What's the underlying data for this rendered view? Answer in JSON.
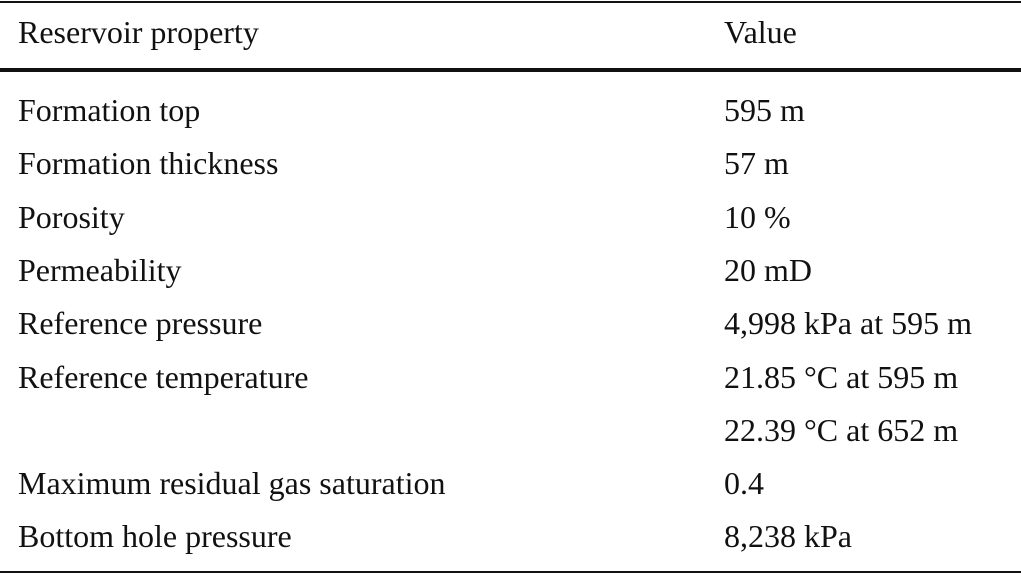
{
  "table": {
    "header": [
      "Reservoir property",
      "Value"
    ],
    "rows": [
      {
        "property": "Formation top",
        "values": [
          "595 m"
        ]
      },
      {
        "property": "Formation thickness",
        "values": [
          "57 m"
        ]
      },
      {
        "property": "Porosity",
        "values": [
          "10 %"
        ]
      },
      {
        "property": "Permeability",
        "values": [
          "20 mD"
        ]
      },
      {
        "property": "Reference pressure",
        "values": [
          "4,998 kPa at 595 m"
        ]
      },
      {
        "property": "Reference temperature",
        "values": [
          "21.85 °C at 595 m",
          "22.39 °C at 652 m"
        ]
      },
      {
        "property": "Maximum residual gas saturation",
        "values": [
          "0.4"
        ]
      },
      {
        "property": "Bottom hole pressure",
        "values": [
          "8,238 kPa"
        ]
      }
    ]
  }
}
